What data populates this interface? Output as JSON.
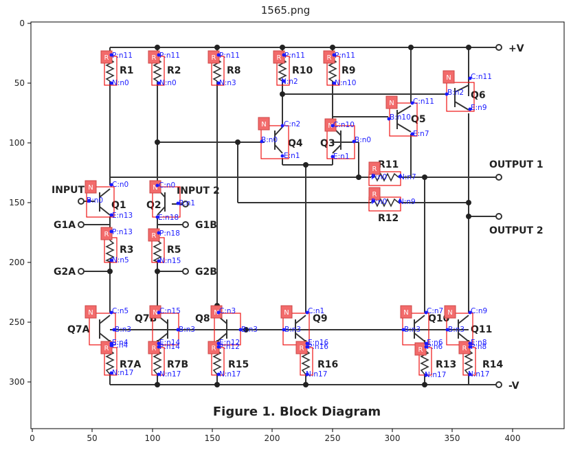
{
  "figure_title": "1565.png",
  "axes": {
    "x_ticks": [
      "0",
      "50",
      "100",
      "150",
      "200",
      "250",
      "300",
      "350",
      "400"
    ],
    "y_ticks": [
      "0",
      "50",
      "100",
      "150",
      "200",
      "250",
      "300"
    ]
  },
  "caption": "Figure 1. Block Diagram",
  "labels": {
    "plus_v": "+V",
    "minus_v": "-V",
    "output1": "OUTPUT 1",
    "output2": "OUTPUT 2",
    "input1": "INPUT 1",
    "input2": "INPUT 2",
    "g1a": "G1A",
    "g1b": "G1B",
    "g2a": "G2A",
    "g2b": "G2B",
    "r1": "R1",
    "r2": "R2",
    "r8": "R8",
    "r10": "R10",
    "r9": "R9",
    "r3": "R3",
    "r5": "R5",
    "r7a": "R7A",
    "r7b": "R7B",
    "r15": "R15",
    "r16": "R16",
    "r13": "R13",
    "r14": "R14",
    "r11": "R11",
    "r12": "R12",
    "q1": "Q1",
    "q2": "Q2",
    "q3": "Q3",
    "q4": "Q4",
    "q5": "Q5",
    "q6": "Q6",
    "q7a": "Q7A",
    "q7b": "Q7B",
    "q8": "Q8",
    "q9": "Q9",
    "q10": "Q10",
    "q11": "Q11"
  },
  "annotations": {
    "box_r": "R",
    "box_n": "N",
    "r1_p": "P:n11",
    "r1_n": "N:n0",
    "r2_p": "P:n11",
    "r2_n": "N:n0",
    "r8_p": "P:n11",
    "r8_n": "N:n3",
    "r10_p": "P:n11",
    "r10_n": "N:n2",
    "r9_p": "P:n11",
    "r9_n": "N:n10",
    "r3_p": "P:n13",
    "r3_n": "N:n5",
    "r5_p": "P:n18",
    "r5_n": "N:n15",
    "r7a_p": "P:n4",
    "r7a_n": "N:n17",
    "r7b_p": "P:n14",
    "r7b_n": "N:n17",
    "r15_p": "P:n12",
    "r15_n": "N:n17",
    "r16_p": "P:n16",
    "r16_n": "N:n17",
    "r13_p": "P:n6",
    "r13_n": "N:n17",
    "r14_p": "P:n8",
    "r14_n": "N:n17",
    "r11_p": "P:n0",
    "r11_n": "N:n7",
    "r12_p": "P:n0",
    "r12_n": "N:n9",
    "q1_c": "C:n0",
    "q1_b": "B:n0",
    "q1_e": "E:n13",
    "q2_c": "C:n0",
    "q2_b": "B:n1",
    "q2_e": "E:n18",
    "q4_c": "C:n2",
    "q4_b": "B:n0",
    "q4_e": "E:n1",
    "q3_c": "C:n10",
    "q3_b": "B:n0",
    "q3_e": "E:n1",
    "q5_c": "C:n11",
    "q5_b": "B:n10",
    "q5_e": "E:n7",
    "q6_c": "C:n11",
    "q6_b": "B:n2",
    "q6_e": "E:n9",
    "q7a_c": "C:n5",
    "q7a_b": "B:n3",
    "q7a_e": "E:n4",
    "q7b_c": "C:n15",
    "q7b_b": "B:n3",
    "q7b_e": "E:n14",
    "q8_c": "C:n3",
    "q8_b": "B:n3",
    "q8_e": "E:n12",
    "q9_c": "C:n1",
    "q9_b": "B:n3",
    "q9_e": "E:n16",
    "q10_c": "C:n7",
    "q10_b": "B:n3",
    "q10_e": "E:n6",
    "q11_c": "C:n9",
    "q11_b": "B:n3",
    "q11_e": "E:n8"
  },
  "colors": {
    "wire": "#333333",
    "annotation_text": "#1a1aff",
    "box_stroke": "#ee1111",
    "tag_fill": "#f26b6b",
    "pin_dot": "#1a1aff"
  }
}
